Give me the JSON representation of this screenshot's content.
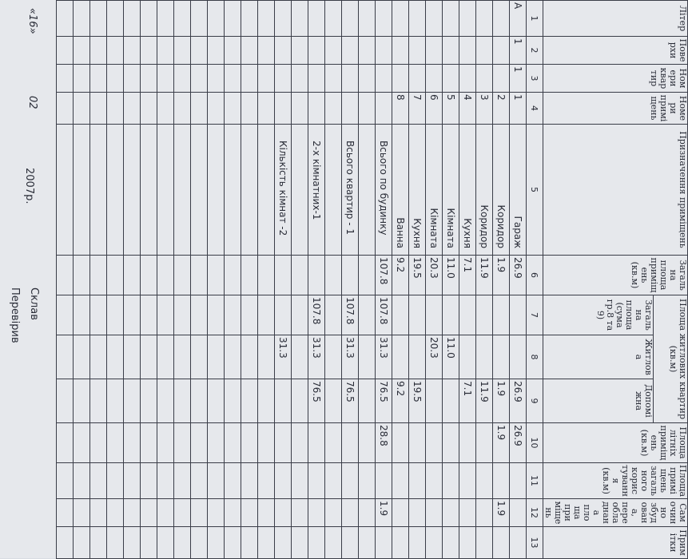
{
  "table": {
    "header": [
      "Літер",
      "Поверхи",
      "Номери квартир",
      "Номери приміщень",
      "Призначення приміщень",
      "Загальна площа приміщень (кв.м)",
      "Площа житлових квартир (кв.м)",
      "Площа літніх приміщень (кв.м)",
      "Площа приміщень загального користування (кв.м)",
      "Самочинно збудована, переобладнана площа приміщень",
      "Примітки"
    ],
    "subheader": [
      "Загальна площа (сума гр.8 та 9)",
      "Житлова",
      "Допоміжна"
    ],
    "column_numbers": [
      "1",
      "2",
      "3",
      "4",
      "5",
      "6",
      "7",
      "8",
      "9",
      "10",
      "11",
      "12",
      "13"
    ],
    "rows": [
      [
        "А",
        "1",
        "1",
        "1",
        "Гараж",
        "26.9",
        "",
        "",
        "26.9",
        "26.9",
        "",
        "",
        ""
      ],
      [
        "",
        "",
        "",
        "2",
        "Коридор",
        "1.9",
        "",
        "",
        "1.9",
        "1.9",
        "",
        "1.9",
        ""
      ],
      [
        "",
        "",
        "",
        "3",
        "Коридор",
        "11.9",
        "",
        "",
        "11.9",
        "",
        "",
        "",
        ""
      ],
      [
        "",
        "",
        "",
        "4",
        "Кухня",
        "7.1",
        "",
        "",
        "7.1",
        "",
        "",
        "",
        ""
      ],
      [
        "",
        "",
        "",
        "5",
        "Кімната",
        "11.0",
        "",
        "11.0",
        "",
        "",
        "",
        "",
        ""
      ],
      [
        "",
        "",
        "",
        "6",
        "Кімната",
        "20.3",
        "",
        "20.3",
        "",
        "",
        "",
        "",
        ""
      ],
      [
        "",
        "",
        "",
        "7",
        "Кухня",
        "19.5",
        "",
        "",
        "19.5",
        "",
        "",
        "",
        ""
      ],
      [
        "",
        "",
        "",
        "8",
        "Ванна",
        "9.2",
        "",
        "",
        "9.2",
        "",
        "",
        "",
        ""
      ],
      [
        "",
        "",
        "",
        "",
        "Всього по будинку",
        "107.8",
        "107.8",
        "31.3",
        "76.5",
        "28.8",
        "",
        "1.9",
        ""
      ],
      [
        "",
        "",
        "",
        "",
        "",
        "",
        "",
        "",
        "",
        "",
        "",
        "",
        ""
      ],
      [
        "",
        "",
        "",
        "",
        "Всього квартир - 1",
        "",
        "107.8",
        "31.3",
        "76.5",
        "",
        "",
        "",
        ""
      ],
      [
        "",
        "",
        "",
        "",
        "",
        "",
        "",
        "",
        "",
        "",
        "",
        "",
        ""
      ],
      [
        "",
        "",
        "",
        "",
        "2-х кімнатних-1",
        "",
        "107.8",
        "31.3",
        "76.5",
        "",
        "",
        "",
        ""
      ],
      [
        "",
        "",
        "",
        "",
        "",
        "",
        "",
        "",
        "",
        "",
        "",
        "",
        ""
      ],
      [
        "",
        "",
        "",
        "",
        "Кількість кімнат -2",
        "",
        "",
        "31.3",
        "",
        "",
        "",
        "",
        ""
      ]
    ]
  },
  "footer": {
    "day": "«16»",
    "month": "02",
    "year": "2007р.",
    "compiled": "Склав",
    "checked": "Перевірив"
  }
}
